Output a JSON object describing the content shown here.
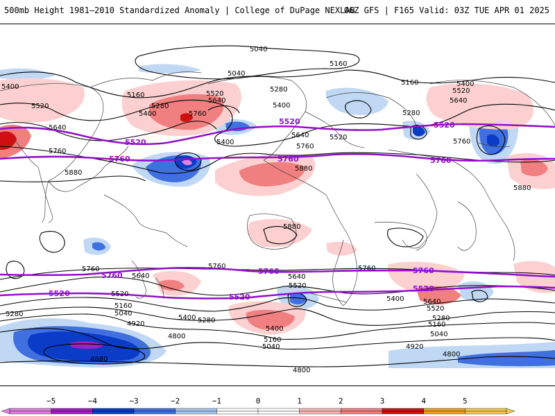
{
  "header": {
    "title": "500mb Height 1981–2010 Standardized Anomaly | College of DuPage NEXLAB",
    "run_info": "06Z GFS | F165 Valid: 03Z TUE APR 01 2025"
  },
  "contour_labels": {
    "c4680": "4680",
    "c4800": "4800",
    "c4920": "4920",
    "c5040": "5040",
    "c5160": "5160",
    "c5280": "5280",
    "c5400": "5400",
    "c5520": "5520",
    "c5640": "5640",
    "c5760": "5760",
    "c5880": "5880"
  },
  "colorbar": {
    "ticks": [
      "−5",
      "−4",
      "−3",
      "−2",
      "−1",
      "0",
      "1",
      "2",
      "3",
      "4",
      "5"
    ],
    "colors": [
      "#e080e0",
      "#a020c0",
      "#0a3cc8",
      "#4070e0",
      "#a8c8f0",
      "#ffffff",
      "#ffffff",
      "#f8b8b8",
      "#f08080",
      "#d01010",
      "#f0a020",
      "#f8c850"
    ]
  },
  "map_colors": {
    "anomaly_pos_light": "#fcd0d0",
    "anomaly_pos_mid": "#f08080",
    "anomaly_pos_strong": "#d01010",
    "anomaly_neg_light": "#c0d8f4",
    "anomaly_neg_mid": "#4070e0",
    "anomaly_neg_strong": "#0a3cc8",
    "anomaly_neg_extreme": "#a020c0",
    "highlight_contour": "#9010c8",
    "contour": "#000000",
    "coastline": "#404040"
  }
}
